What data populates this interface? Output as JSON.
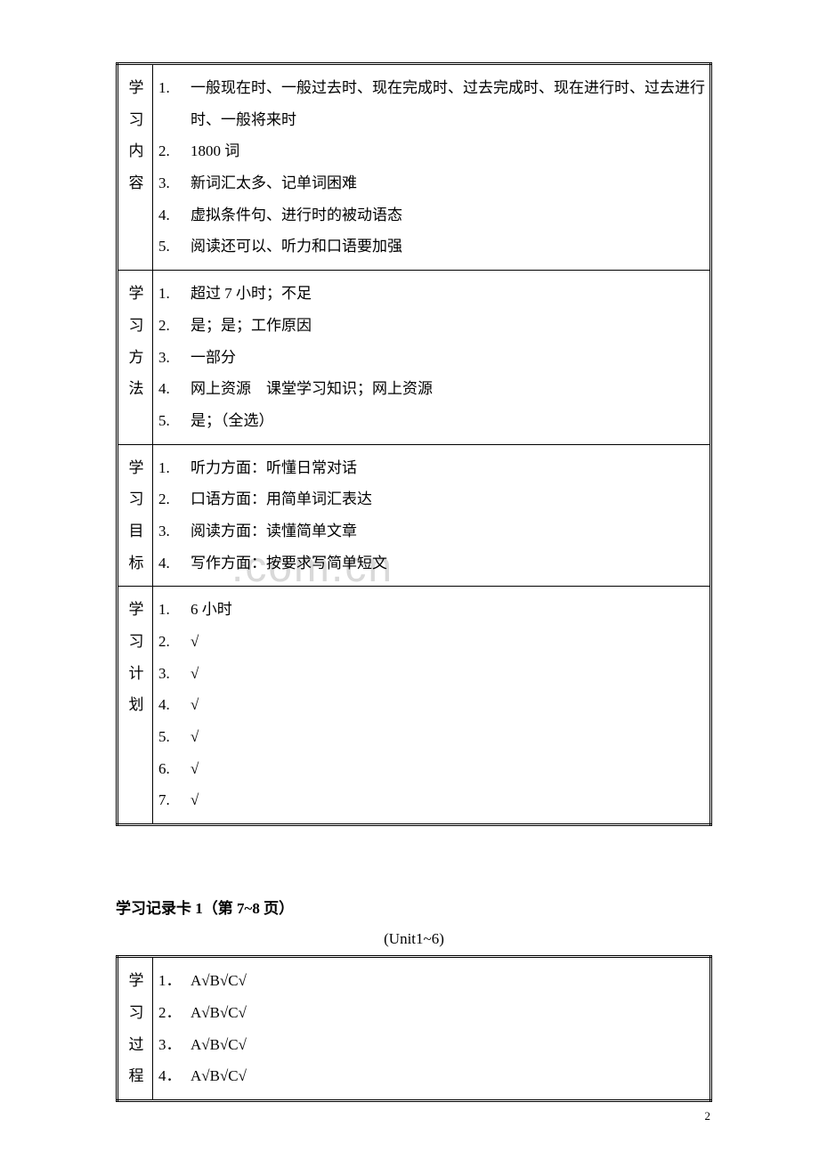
{
  "table1": {
    "rows": [
      {
        "label": "学习内容",
        "items": [
          {
            "num": "1.",
            "text": "一般现在时、一般过去时、现在完成时、过去完成时、现在进行时、过去进行时、一般将来时"
          },
          {
            "num": "2.",
            "text": "1800 词"
          },
          {
            "num": "3.",
            "text": "新词汇太多、记单词困难"
          },
          {
            "num": "4.",
            "text": "虚拟条件句、进行时的被动语态"
          },
          {
            "num": "5.",
            "text": "阅读还可以、听力和口语要加强"
          }
        ]
      },
      {
        "label": "学习方法",
        "items": [
          {
            "num": "1.",
            "text": "超过 7 小时；不足"
          },
          {
            "num": "2.",
            "text": "是；是；工作原因"
          },
          {
            "num": "3.",
            "text": "一部分"
          },
          {
            "num": "4.",
            "text": "网上资源　课堂学习知识；网上资源"
          },
          {
            "num": "5.",
            "text": "是；（全选）"
          }
        ]
      },
      {
        "label": "学习目标",
        "items": [
          {
            "num": "1.",
            "text": "听力方面：听懂日常对话"
          },
          {
            "num": "2.",
            "text": "口语方面：用简单词汇表达"
          },
          {
            "num": "3.",
            "text": "阅读方面：读懂简单文章"
          },
          {
            "num": "4.",
            "text": "写作方面：按要求写简单短文"
          }
        ]
      },
      {
        "label": "学习计划",
        "items": [
          {
            "num": "1.",
            "text": "6 小时"
          },
          {
            "num": "2.",
            "text": "√"
          },
          {
            "num": "3.",
            "text": "√"
          },
          {
            "num": "4.",
            "text": "√"
          },
          {
            "num": "5.",
            "text": "√"
          },
          {
            "num": "6.",
            "text": "√"
          },
          {
            "num": "7.",
            "text": "√"
          }
        ]
      }
    ]
  },
  "section2": {
    "title": "学习记录卡 1（第 7~8 页）",
    "subtitle": "(Unit1~6)"
  },
  "table2": {
    "rows": [
      {
        "label": "学习过程",
        "items": [
          {
            "num": "1．",
            "text": "A√B√C√"
          },
          {
            "num": "2．",
            "text": "A√B√C√"
          },
          {
            "num": "3．",
            "text": "A√B√C√"
          },
          {
            "num": "4．",
            "text": "A√B√C√"
          }
        ]
      }
    ]
  },
  "watermark": ".com.cn",
  "pageNumber": "2"
}
